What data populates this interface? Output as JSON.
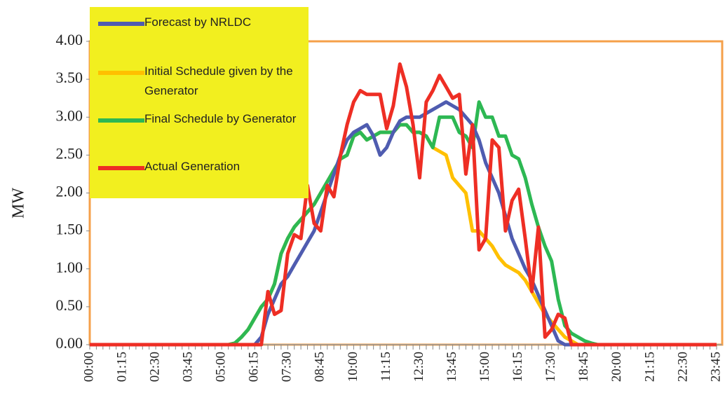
{
  "chart_data": {
    "type": "line",
    "ylabel": "MW",
    "categories": [
      "00:00",
      null,
      null,
      null,
      null,
      "01:15",
      null,
      null,
      null,
      null,
      "02:30",
      null,
      null,
      null,
      null,
      "03:45",
      null,
      null,
      null,
      null,
      "05:00",
      null,
      null,
      null,
      null,
      "06:15",
      null,
      null,
      null,
      null,
      "07:30",
      null,
      null,
      null,
      null,
      "08:45",
      null,
      null,
      null,
      null,
      "10:00",
      null,
      null,
      null,
      null,
      "11:15",
      null,
      null,
      null,
      null,
      "12:30",
      null,
      null,
      null,
      null,
      "13:45",
      null,
      null,
      null,
      null,
      "15:00",
      null,
      null,
      null,
      null,
      "16:15",
      null,
      null,
      null,
      null,
      "17:30",
      null,
      null,
      null,
      null,
      "18:45",
      null,
      null,
      null,
      null,
      "20:00",
      null,
      null,
      null,
      null,
      "21:15",
      null,
      null,
      null,
      null,
      "22:30",
      null,
      null,
      null,
      null,
      "23:45"
    ],
    "series": [
      {
        "name": "Forecast by NRLDC",
        "color": "#4f5cb0",
        "values": [
          0,
          0,
          0,
          0,
          0,
          0,
          0,
          0,
          0,
          0,
          0,
          0,
          0,
          0,
          0,
          0,
          0,
          0,
          0,
          0,
          0,
          0,
          0,
          0,
          0,
          0,
          0.1,
          0.4,
          0.6,
          0.8,
          0.9,
          1.05,
          1.2,
          1.35,
          1.5,
          1.75,
          2.0,
          2.25,
          2.5,
          2.7,
          2.8,
          2.85,
          2.9,
          2.75,
          2.5,
          2.6,
          2.8,
          2.95,
          3.0,
          3.0,
          3.0,
          3.05,
          3.1,
          3.15,
          3.2,
          3.15,
          3.1,
          3.0,
          2.9,
          2.7,
          2.4,
          2.2,
          2.0,
          1.7,
          1.4,
          1.2,
          1.0,
          0.85,
          0.65,
          0.45,
          0.25,
          0.05,
          0,
          0,
          0,
          0,
          0,
          0,
          0,
          0,
          0,
          0,
          0,
          0,
          0,
          0,
          0,
          0,
          0,
          0,
          0,
          0,
          0,
          0,
          0,
          0
        ]
      },
      {
        "name": "Initial Schedule given by the Generator",
        "color": "#ffc000",
        "values": [
          0,
          0,
          0,
          0,
          0,
          0,
          0,
          0,
          0,
          0,
          0,
          0,
          0,
          0,
          0,
          0,
          0,
          0,
          0,
          0,
          0,
          0,
          0.02,
          0.1,
          0.2,
          0.35,
          0.5,
          0.6,
          0.8,
          1.2,
          1.4,
          1.55,
          1.65,
          1.75,
          1.85,
          2.0,
          2.15,
          2.3,
          2.45,
          2.5,
          2.75,
          2.8,
          2.7,
          2.75,
          2.8,
          2.8,
          2.8,
          2.9,
          2.9,
          2.8,
          2.8,
          2.75,
          2.6,
          2.55,
          2.5,
          2.2,
          2.1,
          2.0,
          1.5,
          1.5,
          1.4,
          1.3,
          1.15,
          1.05,
          1.0,
          0.95,
          0.85,
          0.7,
          0.55,
          0.4,
          0.3,
          0.2,
          0.1,
          0.05,
          0,
          0,
          0,
          0,
          0,
          0,
          0,
          0,
          0,
          0,
          0,
          0,
          0,
          0,
          0,
          0,
          0,
          0,
          0,
          0,
          0,
          0
        ]
      },
      {
        "name": "Final Schedule by Generator",
        "color": "#2db853",
        "values": [
          0,
          0,
          0,
          0,
          0,
          0,
          0,
          0,
          0,
          0,
          0,
          0,
          0,
          0,
          0,
          0,
          0,
          0,
          0,
          0,
          0,
          0,
          0.02,
          0.1,
          0.2,
          0.35,
          0.5,
          0.6,
          0.8,
          1.2,
          1.4,
          1.55,
          1.65,
          1.75,
          1.85,
          2.0,
          2.15,
          2.3,
          2.45,
          2.5,
          2.75,
          2.8,
          2.7,
          2.75,
          2.8,
          2.8,
          2.8,
          2.9,
          2.9,
          2.8,
          2.8,
          2.75,
          2.6,
          3.0,
          3.0,
          3.0,
          2.8,
          2.75,
          2.6,
          3.2,
          3.0,
          3.0,
          2.75,
          2.75,
          2.5,
          2.45,
          2.2,
          1.85,
          1.55,
          1.3,
          1.1,
          0.6,
          0.25,
          0.15,
          0.1,
          0.05,
          0.02,
          0,
          0,
          0,
          0,
          0,
          0,
          0,
          0,
          0,
          0,
          0,
          0,
          0,
          0,
          0,
          0,
          0,
          0,
          0
        ]
      },
      {
        "name": "Actual Generation",
        "color": "#ee2e24",
        "values": [
          0,
          0,
          0,
          0,
          0,
          0,
          0,
          0,
          0,
          0,
          0,
          0,
          0,
          0,
          0,
          0,
          0,
          0,
          0,
          0,
          0,
          0,
          0,
          0,
          0,
          0,
          0,
          0.7,
          0.4,
          0.45,
          1.2,
          1.45,
          1.4,
          2.1,
          1.6,
          1.5,
          2.1,
          1.95,
          2.5,
          2.9,
          3.2,
          3.35,
          3.3,
          3.3,
          3.3,
          2.85,
          3.15,
          3.7,
          3.4,
          2.9,
          2.2,
          3.2,
          3.35,
          3.55,
          3.4,
          3.25,
          3.3,
          2.25,
          2.9,
          1.25,
          1.4,
          2.7,
          2.6,
          1.5,
          1.9,
          2.05,
          1.4,
          0.7,
          1.55,
          0.1,
          0.2,
          0.4,
          0.35,
          0,
          0,
          0,
          0,
          0,
          0,
          0,
          0,
          0,
          0,
          0,
          0,
          0,
          0,
          0,
          0,
          0,
          0,
          0,
          0,
          0,
          0,
          0
        ]
      }
    ],
    "ylim": [
      0,
      4
    ],
    "yticks": [
      {
        "value": 0,
        "label": "0.00"
      },
      {
        "value": 0.5,
        "label": "0.50"
      },
      {
        "value": 1,
        "label": "1.00"
      },
      {
        "value": 1.5,
        "label": "1.50"
      },
      {
        "value": 2,
        "label": "2.00"
      },
      {
        "value": 2.5,
        "label": "2.50"
      },
      {
        "value": 3,
        "label": "3.00"
      },
      {
        "value": 3.5,
        "label": "3.50"
      },
      {
        "value": 4,
        "label": "4.00"
      }
    ],
    "legend": "top-left"
  }
}
